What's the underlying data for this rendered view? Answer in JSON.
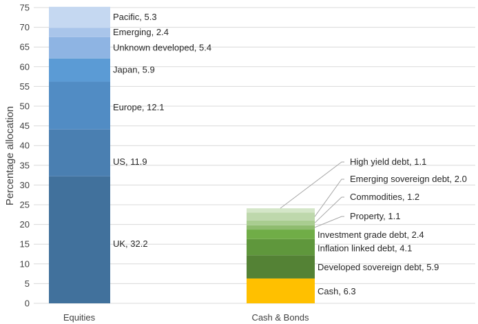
{
  "chart_data": {
    "type": "stacked-bar",
    "ylabel": "Percentage allocation",
    "ylim": [
      0,
      75
    ],
    "yticks": [
      0,
      5,
      10,
      15,
      20,
      25,
      30,
      35,
      40,
      45,
      50,
      55,
      60,
      65,
      70,
      75
    ],
    "grid": true,
    "categories": [
      "Equities",
      "Cash & Bonds"
    ],
    "bars": [
      {
        "category": "Equities",
        "segments": [
          {
            "name": "UK",
            "value": 32.2,
            "label": "UK, 32.2",
            "color": "#41719c"
          },
          {
            "name": "US",
            "value": 11.9,
            "label": "US, 11.9",
            "color": "#4a7fb1"
          },
          {
            "name": "Europe",
            "value": 12.1,
            "label": "Europe, 12.1",
            "color": "#518cc4"
          },
          {
            "name": "Japan",
            "value": 5.9,
            "label": "Japan, 5.9",
            "color": "#5b9bd5"
          },
          {
            "name": "Unknown developed",
            "value": 5.4,
            "label": "Unknown developed, 5.4",
            "color": "#8eb4e3"
          },
          {
            "name": "Emerging",
            "value": 2.4,
            "label": "Emerging, 2.4",
            "color": "#a9c5ea"
          },
          {
            "name": "Pacific",
            "value": 5.3,
            "label": "Pacific, 5.3",
            "color": "#c5d8f1"
          }
        ]
      },
      {
        "category": "Cash & Bonds",
        "segments": [
          {
            "name": "Cash",
            "value": 6.3,
            "label": "Cash, 6.3",
            "color": "#ffc000"
          },
          {
            "name": "Developed sovereign debt",
            "value": 5.9,
            "label": "Developed sovereign debt, 5.9",
            "color": "#548235"
          },
          {
            "name": "Inflation linked debt",
            "value": 4.1,
            "label": "Inflation linked debt, 4.1",
            "color": "#5f973c"
          },
          {
            "name": "Investment grade debt",
            "value": 2.4,
            "label": "Investment grade debt, 2.4",
            "color": "#70ad47"
          },
          {
            "name": "Property",
            "value": 1.1,
            "label": "Property, 1.1",
            "color": "#8fbc6f"
          },
          {
            "name": "Commodities",
            "value": 1.2,
            "label": "Commodities, 1.2",
            "color": "#a9cd90"
          },
          {
            "name": "Emerging sovereign debt",
            "value": 2.0,
            "label": "Emerging sovereign debt, 2.0",
            "color": "#bed8ac"
          },
          {
            "name": "High yield debt",
            "value": 1.1,
            "label": "High yield debt, 1.1",
            "color": "#d4e6c8"
          }
        ]
      }
    ]
  }
}
